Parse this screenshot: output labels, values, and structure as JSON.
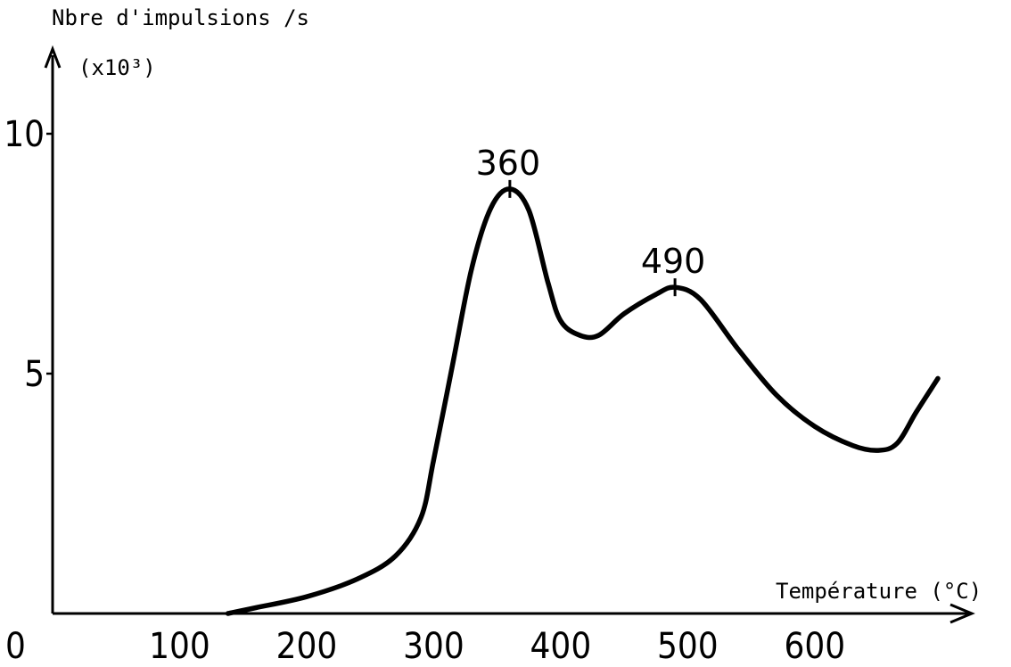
{
  "chart_data": {
    "type": "line",
    "ylabel": "Nbre d'impulsions /s",
    "yunit": "(x10³)",
    "xlabel": "Température (°C)",
    "xlim": [
      0,
      700
    ],
    "ylim": [
      0,
      12.5
    ],
    "x_ticks": [
      "0",
      "100",
      "200",
      "300",
      "400",
      "500",
      "600"
    ],
    "y_ticks": [
      "5",
      "10"
    ],
    "grid": false,
    "peaks": [
      {
        "label": "360",
        "x": 360,
        "y": 8.85
      },
      {
        "label": "490",
        "x": 490,
        "y": 6.8
      }
    ],
    "series": [
      {
        "points": [
          [
            138,
            0.0
          ],
          [
            160,
            0.12
          ],
          [
            200,
            0.35
          ],
          [
            240,
            0.72
          ],
          [
            270,
            1.2
          ],
          [
            290,
            2.0
          ],
          [
            300,
            3.2
          ],
          [
            315,
            5.2
          ],
          [
            330,
            7.2
          ],
          [
            345,
            8.45
          ],
          [
            360,
            8.85
          ],
          [
            375,
            8.4
          ],
          [
            390,
            6.9
          ],
          [
            400,
            6.1
          ],
          [
            415,
            5.8
          ],
          [
            430,
            5.8
          ],
          [
            450,
            6.25
          ],
          [
            475,
            6.65
          ],
          [
            490,
            6.8
          ],
          [
            510,
            6.55
          ],
          [
            540,
            5.5
          ],
          [
            570,
            4.55
          ],
          [
            600,
            3.9
          ],
          [
            630,
            3.5
          ],
          [
            650,
            3.4
          ],
          [
            665,
            3.55
          ],
          [
            680,
            4.2
          ],
          [
            697,
            4.9
          ]
        ]
      }
    ]
  }
}
